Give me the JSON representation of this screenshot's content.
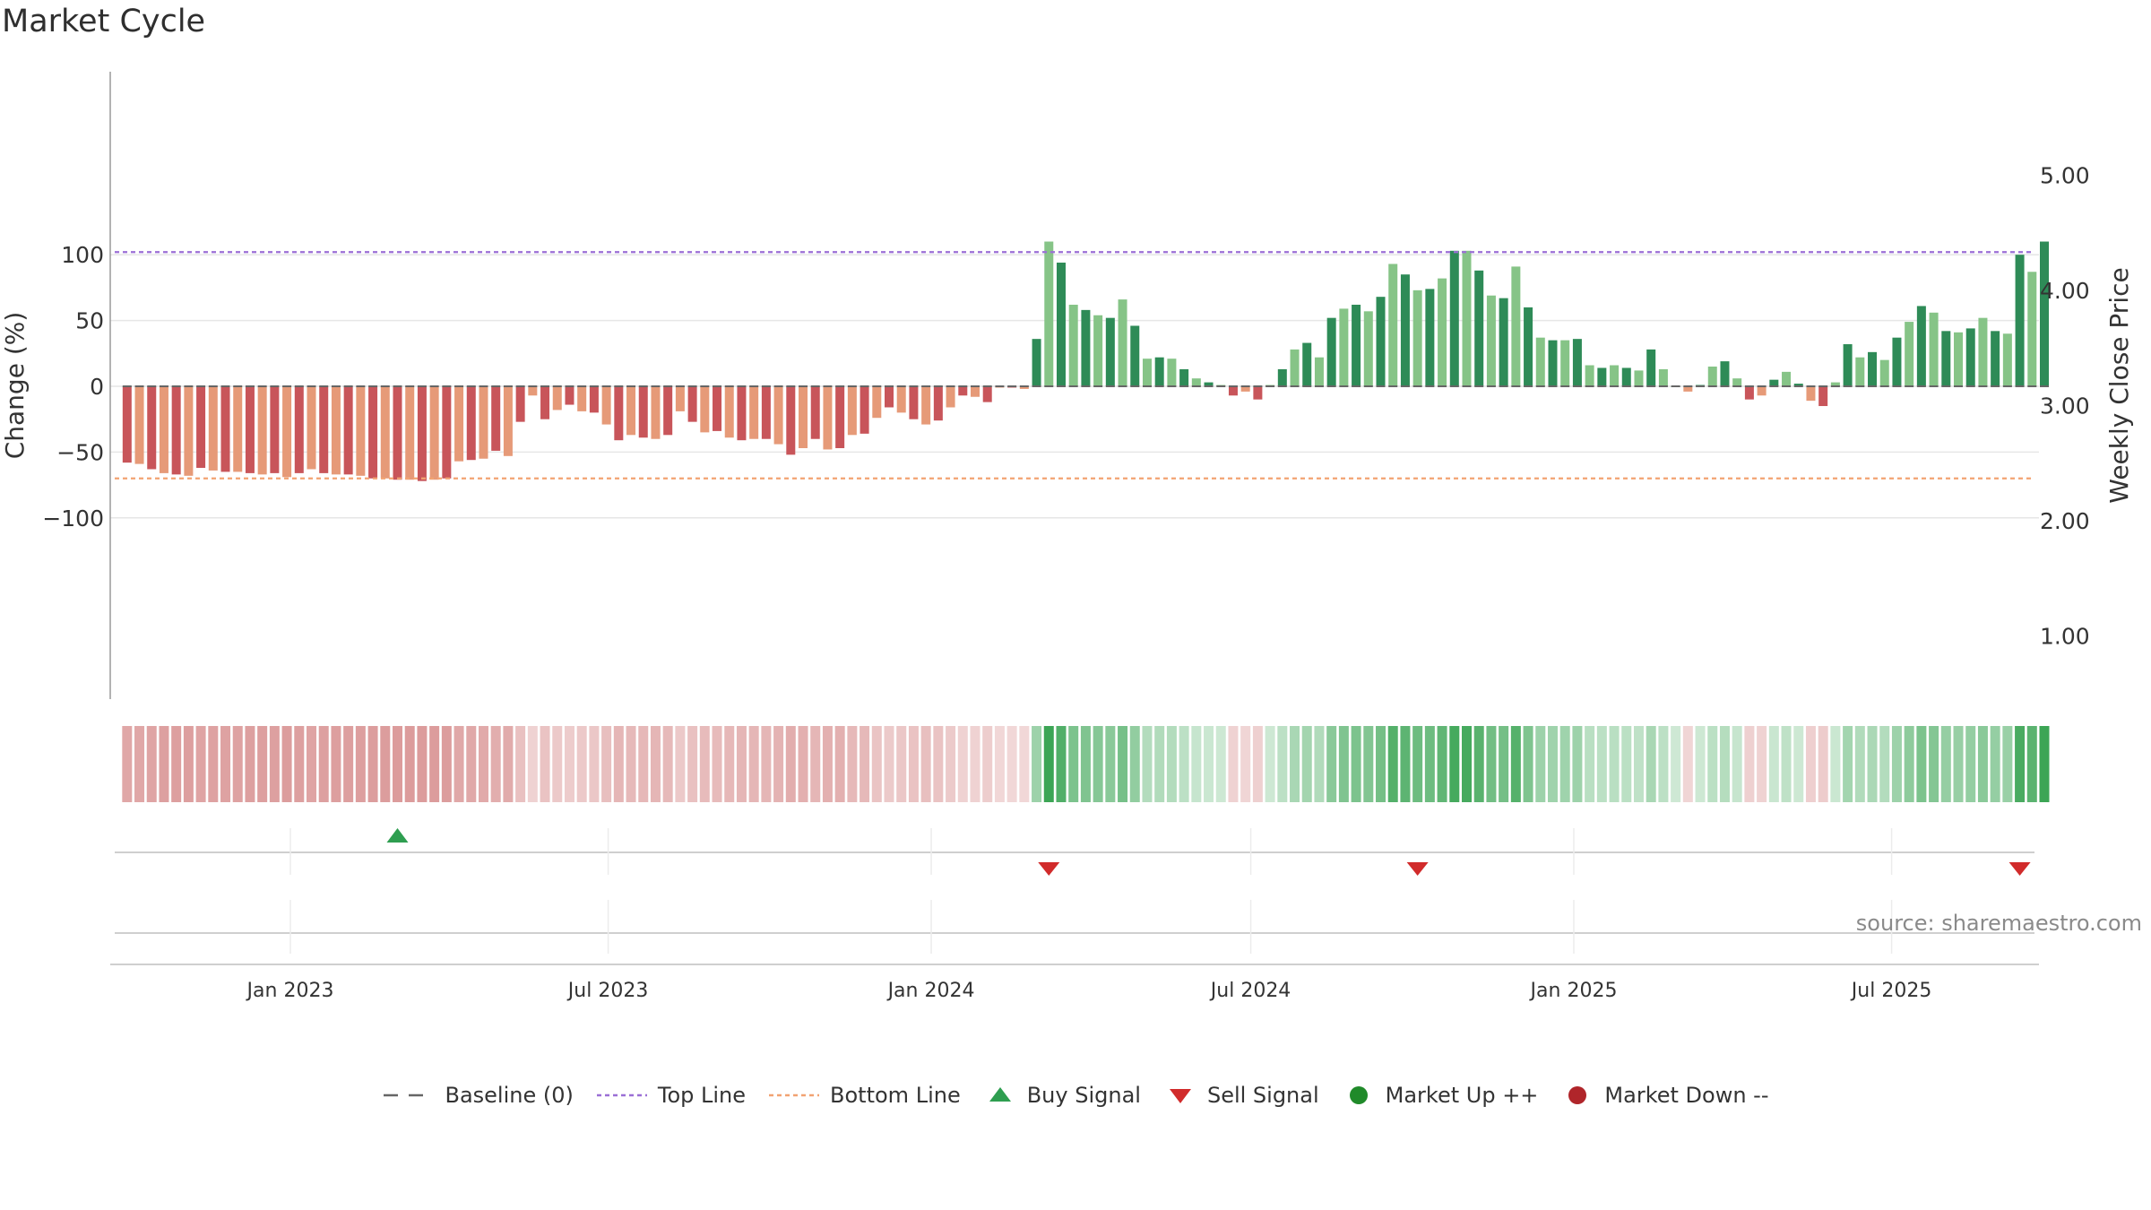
{
  "page": {
    "title": "Market Cycle",
    "source": "source: sharemaestro.com"
  },
  "chart_data": {
    "type": "bar",
    "title": "Market Cycle",
    "x_start": "2022-09-30",
    "x_interval_days": 7,
    "x_tick_labels": [
      "Jan 2023",
      "Jul 2023",
      "Jan 2024",
      "Jul 2024",
      "Jan 2025",
      "Jul 2025"
    ],
    "x_tick_dates": [
      "2023-01-01",
      "2023-07-01",
      "2024-01-01",
      "2024-07-01",
      "2025-01-01",
      "2025-07-01"
    ],
    "ylabel_left": "Change (%)",
    "ylabel_right": "Weekly Close Price",
    "ylim_left": [
      -120,
      120
    ],
    "yticks_left": [
      100,
      50,
      0,
      -50,
      -100
    ],
    "yticks_left_labels": [
      "100",
      "50",
      "0",
      "−50",
      "−100"
    ],
    "ylim_right": [
      0.45,
      5.9
    ],
    "yticks_right": [
      1.0,
      2.0,
      3.0,
      4.0,
      5.0
    ],
    "yticks_right_labels": [
      "1.00",
      "2.00",
      "3.00",
      "4.00",
      "5.00"
    ],
    "top_line": 102,
    "bottom_line": -70,
    "baseline": 0,
    "series": [
      {
        "values": [
          -58,
          -59,
          -63,
          -66,
          -67,
          -68,
          -62,
          -64,
          -65,
          -65,
          -66,
          -67,
          -66,
          -69,
          -66,
          -63,
          -66,
          -67,
          -67,
          -68,
          -70,
          -70,
          -71,
          -71,
          -72,
          -71,
          -70,
          -57,
          -56,
          -55,
          -49,
          -53,
          -27,
          -7,
          -25,
          -18,
          -14,
          -19,
          -20,
          -29,
          -41,
          -37,
          -39,
          -40,
          -37,
          -19,
          -27,
          -35,
          -34,
          -39,
          -41,
          -40,
          -40,
          -44,
          -52,
          -47,
          -40,
          -48,
          -47,
          -37,
          -36,
          -24,
          -16,
          -20,
          -25,
          -29,
          -26,
          -16,
          -7,
          -8,
          -12,
          -1,
          -1,
          -2,
          36,
          110,
          94,
          62,
          58,
          54,
          52,
          66,
          46,
          21,
          22,
          21,
          13,
          6,
          3,
          1,
          -7,
          -4,
          -10,
          1,
          13,
          28,
          33,
          22,
          52,
          59,
          62,
          57,
          68,
          93,
          85,
          73,
          74,
          82,
          103,
          103,
          88,
          69,
          67,
          91,
          60,
          37,
          35,
          35,
          36,
          16,
          14,
          16,
          14,
          12,
          28,
          13,
          0,
          -4,
          1,
          15,
          19,
          6,
          -10,
          -7,
          5,
          11,
          2,
          -11,
          -15,
          3,
          32,
          22,
          26,
          20,
          37,
          49,
          61,
          56,
          42,
          41,
          44,
          52,
          42,
          40,
          100,
          87,
          110
        ]
      }
    ],
    "up_buy_signals": [
      "2023-03-03"
    ],
    "down_sell_signals": [
      "2024-03-08",
      "2024-10-04",
      "2025-09-12"
    ],
    "legend": [
      "Baseline (0)",
      "Top Line",
      "Bottom Line",
      "Buy Signal",
      "Sell Signal",
      "Market Up ++",
      "Market Down --"
    ],
    "colors": {
      "red_strong": "#c8555a",
      "red_light": "#e69a78",
      "green_strong": "#2e8b57",
      "green_light": "#86c487",
      "top_line": "#9b6fd6",
      "bottom_line": "#f2a372",
      "buy": "#2e9e50",
      "sell": "#d12b2b",
      "market_up": "#208a2a",
      "market_down": "#b0252a",
      "baseline": "#666666"
    }
  }
}
